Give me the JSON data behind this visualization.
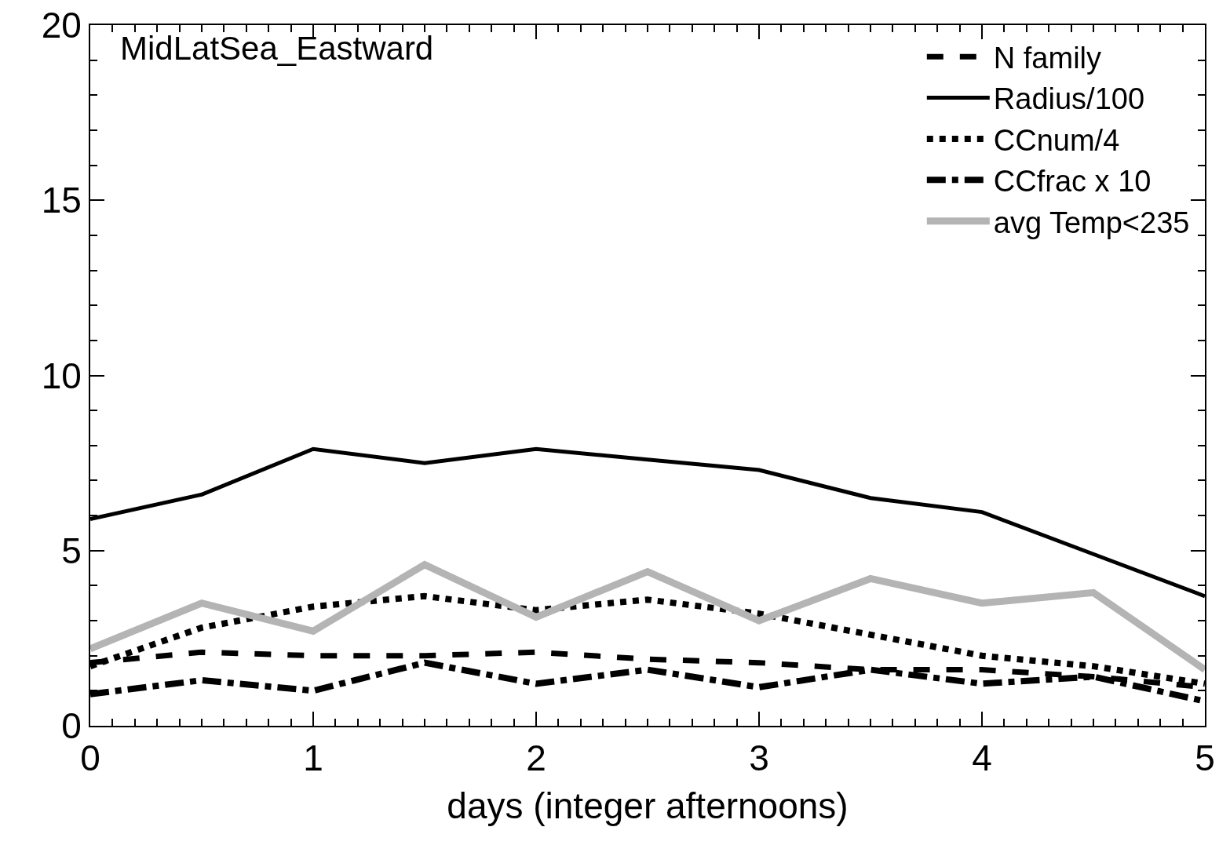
{
  "chart_data": {
    "type": "line",
    "xlabel": "days (integer afternoons)",
    "annotations": [
      "MidLatSea_Eastward"
    ],
    "x": [
      0,
      0.5,
      1,
      1.5,
      2,
      2.5,
      3,
      3.5,
      4,
      4.5,
      5
    ],
    "xlim": [
      0,
      5
    ],
    "xticks": [
      0,
      1,
      2,
      3,
      4,
      5
    ],
    "ylim": [
      0,
      20
    ],
    "yticks": [
      0,
      5,
      10,
      15,
      20
    ],
    "grid": false,
    "legend": "top right",
    "marker": "none",
    "series": [
      {
        "name": "N family",
        "color": "#000000",
        "line_style": "dashed",
        "values": [
          1.8,
          2.1,
          2.0,
          2.0,
          2.1,
          1.9,
          1.8,
          1.6,
          1.6,
          1.4,
          1.1
        ]
      },
      {
        "name": "Radius/100",
        "color": "#000000",
        "line_style": "solid",
        "values": [
          5.9,
          6.6,
          7.9,
          7.5,
          7.9,
          7.6,
          7.3,
          6.5,
          6.1,
          4.9,
          3.7
        ]
      },
      {
        "name": "CCnum/4",
        "color": "#000000",
        "line_style": "dotted",
        "values": [
          1.7,
          2.8,
          3.4,
          3.7,
          3.3,
          3.6,
          3.2,
          2.6,
          2.0,
          1.7,
          1.2
        ]
      },
      {
        "name": "CCfrac x 10",
        "color": "#000000",
        "line_style": "dashdot",
        "values": [
          0.9,
          1.3,
          1.0,
          1.8,
          1.2,
          1.6,
          1.1,
          1.6,
          1.2,
          1.4,
          0.7
        ]
      },
      {
        "name": "avg Temp<235",
        "color": "#b4b4b4",
        "line_style": "solid",
        "values": [
          2.2,
          3.5,
          2.7,
          4.6,
          3.1,
          4.4,
          3.0,
          4.2,
          3.5,
          3.8,
          1.6
        ]
      }
    ]
  }
}
